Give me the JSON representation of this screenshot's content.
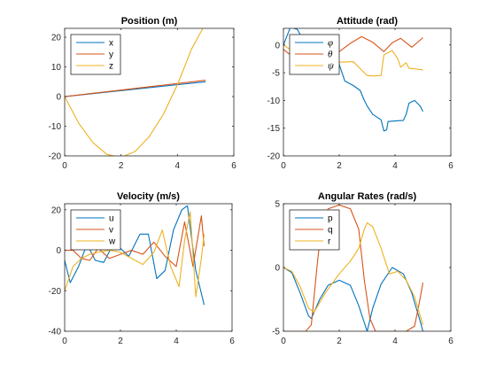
{
  "colors": {
    "blue": "#0072bd",
    "orange": "#d95319",
    "yellow": "#edb120"
  },
  "chart_data": [
    {
      "type": "line",
      "title": "Position (m)",
      "xlim": [
        0,
        6
      ],
      "ylim": [
        -20,
        23
      ],
      "xticks": [
        0,
        2,
        4,
        6
      ],
      "yticks": [
        -20,
        -10,
        0,
        10,
        20
      ],
      "legend_placement": "top-left",
      "series": [
        {
          "name": "x",
          "color": "blue",
          "x": [
            0,
            1,
            2,
            3,
            4,
            5
          ],
          "y": [
            0,
            1,
            2,
            3,
            4,
            5
          ]
        },
        {
          "name": "y",
          "color": "orange",
          "x": [
            0,
            1,
            2,
            3,
            4,
            5
          ],
          "y": [
            0,
            1.1,
            2.2,
            3.3,
            4.4,
            5.5
          ]
        },
        {
          "name": "z",
          "color": "yellow",
          "x": [
            0,
            0.5,
            1,
            1.5,
            2,
            2.5,
            3,
            3.5,
            4,
            4.5,
            4.9
          ],
          "y": [
            0,
            -9,
            -15.5,
            -19.5,
            -20.5,
            -18.5,
            -13.5,
            -6,
            4,
            16,
            23
          ]
        }
      ]
    },
    {
      "type": "line",
      "title": "Attitude (rad)",
      "xlim": [
        0,
        6
      ],
      "ylim": [
        -20,
        3
      ],
      "xticks": [
        0,
        2,
        4,
        6
      ],
      "yticks": [
        -20,
        -15,
        -10,
        -5,
        0
      ],
      "legend_placement": "top-left",
      "series": [
        {
          "name": "φ",
          "color": "blue",
          "x": [
            0,
            0.25,
            0.5,
            0.75,
            1,
            1.5,
            1.75,
            1.9,
            2.0,
            2.2,
            2.5,
            2.75,
            2.9,
            3.0,
            3.2,
            3.5,
            3.6,
            3.7,
            3.75,
            4.0,
            4.3,
            4.4,
            4.5,
            4.7,
            4.9,
            5.0
          ],
          "y": [
            0,
            3.2,
            2.8,
            0.5,
            -0.3,
            -0.2,
            -0.5,
            -1.5,
            -3.5,
            -6.5,
            -7.3,
            -8.2,
            -10,
            -11,
            -12.5,
            -13.5,
            -15.5,
            -15.3,
            -13.8,
            -13.7,
            -13.6,
            -12.5,
            -10.5,
            -10.0,
            -11.0,
            -12.0
          ]
        },
        {
          "name": "θ",
          "color": "orange",
          "x": [
            0,
            0.3,
            0.6,
            0.9,
            1.2,
            1.6,
            2.0,
            2.4,
            2.8,
            3.2,
            3.6,
            3.9,
            4.2,
            4.6,
            5.0
          ],
          "y": [
            -0.8,
            -2.0,
            -1.0,
            0.8,
            1.4,
            0.2,
            -1.2,
            0.3,
            1.5,
            0.5,
            -1.2,
            0.4,
            1.2,
            -0.4,
            1.3
          ]
        },
        {
          "name": "ψ",
          "color": "yellow",
          "x": [
            0,
            0.3,
            0.6,
            1.0,
            1.3,
            1.8,
            2.0,
            2.5,
            2.8,
            3.0,
            3.2,
            3.5,
            3.6,
            3.9,
            4.1,
            4.2,
            4.4,
            4.5,
            4.7,
            5.0
          ],
          "y": [
            0,
            -1.0,
            -2.5,
            -1.8,
            -3.0,
            -3.2,
            -3.1,
            -3.0,
            -4.5,
            -5.5,
            -5.6,
            -5.5,
            -1.8,
            -1.0,
            -2.5,
            -4.0,
            -3.2,
            -4.2,
            -4.3,
            -4.5
          ]
        }
      ]
    },
    {
      "type": "line",
      "title": "Velocity (m/s)",
      "xlim": [
        0,
        6
      ],
      "ylim": [
        -40,
        23
      ],
      "xticks": [
        0,
        2,
        4,
        6
      ],
      "yticks": [
        -40,
        -20,
        0,
        20
      ],
      "legend_placement": "top-left",
      "series": [
        {
          "name": "u",
          "color": "blue",
          "x": [
            0,
            0.2,
            0.5,
            0.8,
            1.1,
            1.4,
            1.7,
            2.0,
            2.3,
            2.7,
            3.0,
            3.3,
            3.6,
            3.9,
            4.2,
            4.4,
            4.7,
            5.0
          ],
          "y": [
            -5,
            -16,
            -8,
            3,
            -5,
            -6,
            2,
            1,
            -3,
            8,
            8,
            -14,
            -10,
            10,
            20,
            22,
            -10,
            -27
          ]
        },
        {
          "name": "v",
          "color": "orange",
          "x": [
            0,
            0.3,
            0.6,
            0.9,
            1.2,
            1.6,
            2.0,
            2.4,
            2.8,
            3.2,
            3.6,
            4.0,
            4.3,
            4.6,
            4.9,
            5.0
          ],
          "y": [
            0,
            0,
            -4,
            -5,
            1,
            -4,
            -2,
            0,
            -2,
            4,
            -3,
            -8,
            14,
            -8,
            17,
            2
          ]
        },
        {
          "name": "w",
          "color": "yellow",
          "x": [
            0,
            0.3,
            0.6,
            0.9,
            1.2,
            1.6,
            2.0,
            2.4,
            2.8,
            3.2,
            3.5,
            3.8,
            4.1,
            4.3,
            4.5,
            4.7,
            4.9,
            5.0
          ],
          "y": [
            -20,
            -8,
            -4,
            -2,
            -1,
            0,
            -1,
            -4,
            -7,
            -1,
            10,
            -8,
            -18,
            5,
            19,
            -23,
            -4,
            8
          ]
        }
      ]
    },
    {
      "type": "line",
      "title": "Angular Rates (rad/s)",
      "xlim": [
        0,
        6
      ],
      "ylim": [
        -5,
        5
      ],
      "xticks": [
        0,
        2,
        4,
        6
      ],
      "yticks": [
        -5,
        0,
        5
      ],
      "legend_placement": "top-left",
      "series": [
        {
          "name": "p",
          "color": "blue",
          "x": [
            0,
            0.3,
            0.6,
            0.9,
            1.0,
            1.3,
            1.6,
            2.0,
            2.4,
            2.7,
            3.0,
            3.2,
            3.5,
            3.9,
            4.3,
            4.6,
            4.9,
            5.0
          ],
          "y": [
            0,
            -0.4,
            -2.0,
            -3.8,
            -4.0,
            -2.5,
            -1.4,
            -1.0,
            -1.4,
            -3.0,
            -5.0,
            -3.2,
            -1.3,
            0,
            -0.5,
            -2.0,
            -4.2,
            -5.0
          ]
        },
        {
          "name": "q",
          "color": "orange",
          "x": [
            0,
            0.5,
            0.8,
            1.0,
            1.2,
            1.35,
            1.6,
            2.0,
            2.4,
            2.7,
            2.9,
            3.1,
            3.3,
            3.6,
            4.0,
            4.4,
            4.7,
            4.85,
            5.0
          ],
          "y": [
            -5,
            -5,
            -5,
            -4.5,
            0,
            3.0,
            4.6,
            4.9,
            4.6,
            3.0,
            -1.0,
            -4.0,
            -5.0,
            -5.0,
            -5.0,
            -5.0,
            -4.6,
            -3.0,
            -1.2
          ]
        },
        {
          "name": "r",
          "color": "yellow",
          "x": [
            0,
            0.3,
            0.6,
            0.9,
            1.1,
            1.5,
            2.0,
            2.4,
            2.7,
            2.9,
            3.0,
            3.2,
            3.5,
            3.8,
            4.1,
            4.4,
            4.7,
            5.0
          ],
          "y": [
            0,
            -0.3,
            -1.5,
            -3.2,
            -3.5,
            -2.0,
            -0.5,
            0.5,
            1.5,
            3.0,
            3.5,
            3.2,
            1.5,
            -0.5,
            -0.3,
            -1.0,
            -2.3,
            -4.5
          ]
        }
      ]
    }
  ]
}
